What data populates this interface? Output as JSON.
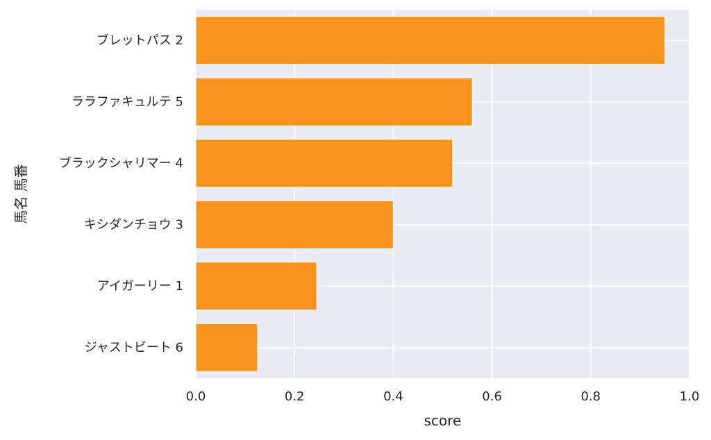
{
  "chart_data": {
    "type": "bar",
    "orientation": "horizontal",
    "categories": [
      "ブレットパス 2",
      "ララファキュルテ 5",
      "ブラックシャリマー 4",
      "キシダンチョウ 3",
      "アイガーリー 1",
      "ジャストビート 6"
    ],
    "values": [
      0.95,
      0.56,
      0.52,
      0.4,
      0.245,
      0.125
    ],
    "xlabel": "score",
    "ylabel": "馬名 馬番",
    "xlim": [
      0.0,
      1.0
    ],
    "xticks": [
      "0.0",
      "0.2",
      "0.4",
      "0.6",
      "0.8",
      "1.0"
    ],
    "grid": true,
    "colors": {
      "bar": "#f7931e",
      "background": "#eaeaf2",
      "grid": "#ffffff"
    }
  }
}
